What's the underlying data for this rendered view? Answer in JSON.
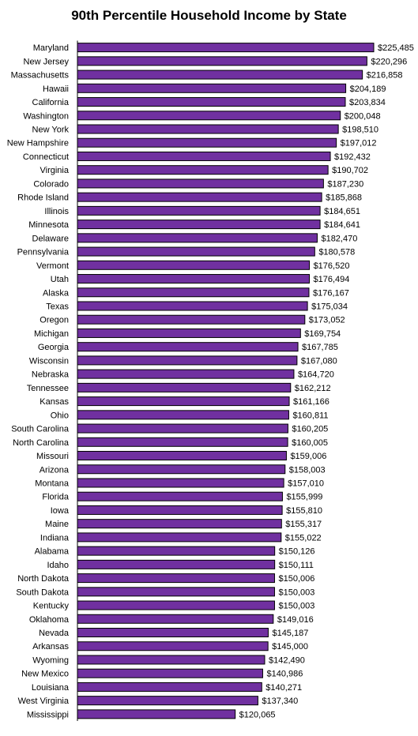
{
  "chart_data": {
    "type": "bar",
    "orientation": "horizontal",
    "title": "90th Percentile Household Income by State",
    "bar_color": "#7030a0",
    "bar_border_color": "#000000",
    "grid": false,
    "legend": "none",
    "categories": [
      "Maryland",
      "New Jersey",
      "Massachusetts",
      "Hawaii",
      "California",
      "Washington",
      "New York",
      "New Hampshire",
      "Connecticut",
      "Virginia",
      "Colorado",
      "Rhode Island",
      "Illinois",
      "Minnesota",
      "Delaware",
      "Pennsylvania",
      "Vermont",
      "Utah",
      "Alaska",
      "Texas",
      "Oregon",
      "Michigan",
      "Georgia",
      "Wisconsin",
      "Nebraska",
      "Tennessee",
      "Kansas",
      "Ohio",
      "South Carolina",
      "North Carolina",
      "Missouri",
      "Arizona",
      "Montana",
      "Florida",
      "Iowa",
      "Maine",
      "Indiana",
      "Alabama",
      "Idaho",
      "North Dakota",
      "South Dakota",
      "Kentucky",
      "Oklahoma",
      "Nevada",
      "Arkansas",
      "Wyoming",
      "New Mexico",
      "Louisiana",
      "West Virginia",
      "Mississippi"
    ],
    "values": [
      225485,
      220296,
      216858,
      204189,
      203834,
      200048,
      198510,
      197012,
      192432,
      190702,
      187230,
      185868,
      184651,
      184641,
      182470,
      180578,
      176520,
      176494,
      176167,
      175034,
      173052,
      169754,
      167785,
      167080,
      164720,
      162212,
      161166,
      160811,
      160205,
      160005,
      159006,
      158003,
      157010,
      155999,
      155810,
      155317,
      155022,
      150126,
      150111,
      150006,
      150003,
      150003,
      149016,
      145187,
      145000,
      142490,
      140986,
      140271,
      137340,
      120065
    ],
    "value_labels": [
      "$225,485",
      "$220,296",
      "$216,858",
      "$204,189",
      "$203,834",
      "$200,048",
      "$198,510",
      "$197,012",
      "$192,432",
      "$190,702",
      "$187,230",
      "$185,868",
      "$184,651",
      "$184,641",
      "$182,470",
      "$180,578",
      "$176,520",
      "$176,494",
      "$176,167",
      "$175,034",
      "$173,052",
      "$169,754",
      "$167,785",
      "$167,080",
      "$164,720",
      "$162,212",
      "$161,166",
      "$160,811",
      "$160,205",
      "$160,005",
      "$159,006",
      "$158,003",
      "$157,010",
      "$155,999",
      "$155,810",
      "$155,317",
      "$155,022",
      "$150,126",
      "$150,111",
      "$150,006",
      "$150,003",
      "$150,003",
      "$149,016",
      "$145,187",
      "$145,000",
      "$142,490",
      "$140,986",
      "$140,271",
      "$137,340",
      "$120,065"
    ],
    "xlim": [
      0,
      225485
    ]
  }
}
